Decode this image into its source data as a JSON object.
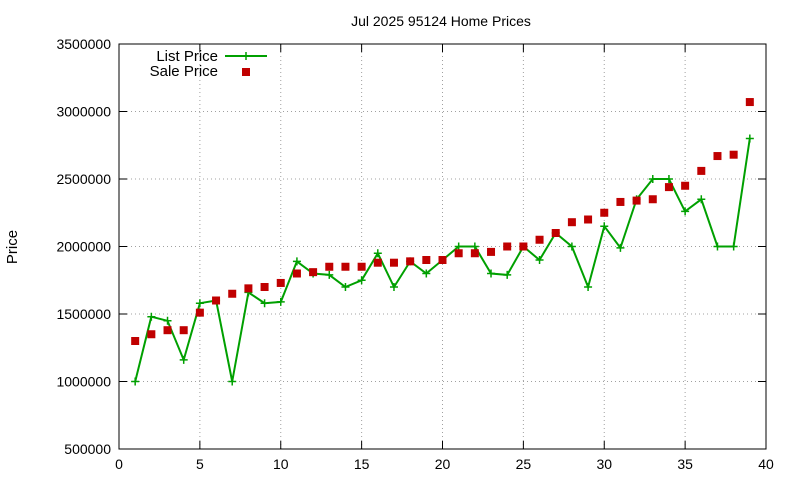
{
  "chart_data": {
    "type": "line",
    "title": "Jul 2025 95124 Home Prices",
    "xlabel": "",
    "ylabel": "Price",
    "xlim": [
      0,
      40
    ],
    "ylim": [
      500000,
      3500000
    ],
    "xticks": [
      0,
      5,
      10,
      15,
      20,
      25,
      30,
      35,
      40
    ],
    "yticks": [
      500000,
      1000000,
      1500000,
      2000000,
      2500000,
      3000000,
      3500000
    ],
    "grid": true,
    "legend_position": "top-left",
    "series": [
      {
        "name": "List Price",
        "style": "linespoints",
        "marker": "plus",
        "color": "#00a000",
        "x": [
          1,
          2,
          3,
          4,
          5,
          6,
          7,
          8,
          9,
          10,
          11,
          12,
          13,
          14,
          15,
          16,
          17,
          18,
          19,
          20,
          21,
          22,
          23,
          24,
          25,
          26,
          27,
          28,
          29,
          30,
          31,
          32,
          33,
          34,
          35,
          36,
          37,
          38,
          39
        ],
        "y": [
          1000000,
          1480000,
          1450000,
          1160000,
          1580000,
          1600000,
          1000000,
          1660000,
          1580000,
          1590000,
          1890000,
          1800000,
          1790000,
          1700000,
          1750000,
          1950000,
          1700000,
          1890000,
          1800000,
          1900000,
          2000000,
          2000000,
          1800000,
          1790000,
          2000000,
          1900000,
          2100000,
          2000000,
          1700000,
          2150000,
          1990000,
          2350000,
          2500000,
          2500000,
          2260000,
          2350000,
          2000000,
          2000000,
          2800000
        ]
      },
      {
        "name": "Sale Price",
        "style": "points",
        "marker": "square",
        "color": "#c00000",
        "x": [
          1,
          2,
          3,
          4,
          5,
          6,
          7,
          8,
          9,
          10,
          11,
          12,
          13,
          14,
          15,
          16,
          17,
          18,
          19,
          20,
          21,
          22,
          23,
          24,
          25,
          26,
          27,
          28,
          29,
          30,
          31,
          32,
          33,
          34,
          35,
          36,
          37,
          38,
          39
        ],
        "y": [
          1300000,
          1350000,
          1380000,
          1380000,
          1510000,
          1600000,
          1650000,
          1690000,
          1700000,
          1730000,
          1800000,
          1810000,
          1850000,
          1850000,
          1850000,
          1880000,
          1880000,
          1890000,
          1900000,
          1900000,
          1950000,
          1950000,
          1960000,
          2000000,
          2000000,
          2050000,
          2100000,
          2180000,
          2200000,
          2250000,
          2330000,
          2340000,
          2350000,
          2440000,
          2450000,
          2560000,
          2670000,
          2680000,
          3070000
        ]
      }
    ]
  }
}
